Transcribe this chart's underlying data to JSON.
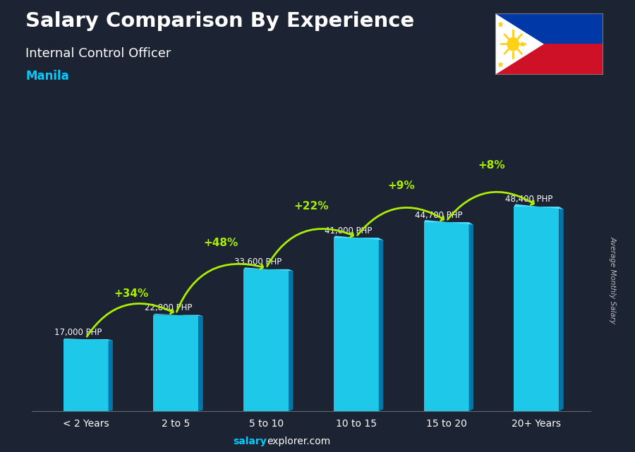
{
  "title_line1": "Salary Comparison By Experience",
  "title_line2": "Internal Control Officer",
  "title_line3": "Manila",
  "categories": [
    "< 2 Years",
    "2 to 5",
    "5 to 10",
    "10 to 15",
    "15 to 20",
    "20+ Years"
  ],
  "values": [
    17000,
    22800,
    33600,
    41000,
    44700,
    48400
  ],
  "salary_labels": [
    "17,000 PHP",
    "22,800 PHP",
    "33,600 PHP",
    "41,000 PHP",
    "44,700 PHP",
    "48,400 PHP"
  ],
  "pct_labels": [
    "+34%",
    "+48%",
    "+22%",
    "+9%",
    "+8%"
  ],
  "bar_color_face": "#1EC8E8",
  "background_color": "#1a1a2e",
  "title_color": "#ffffff",
  "subtitle_color": "#ffffff",
  "manila_color": "#00CCFF",
  "pct_color": "#AAEE00",
  "salary_label_color": "#ffffff",
  "ylabel": "Average Monthly Salary",
  "footer_bold": "salary",
  "footer_regular": "explorer.com",
  "ylim_max": 62000
}
